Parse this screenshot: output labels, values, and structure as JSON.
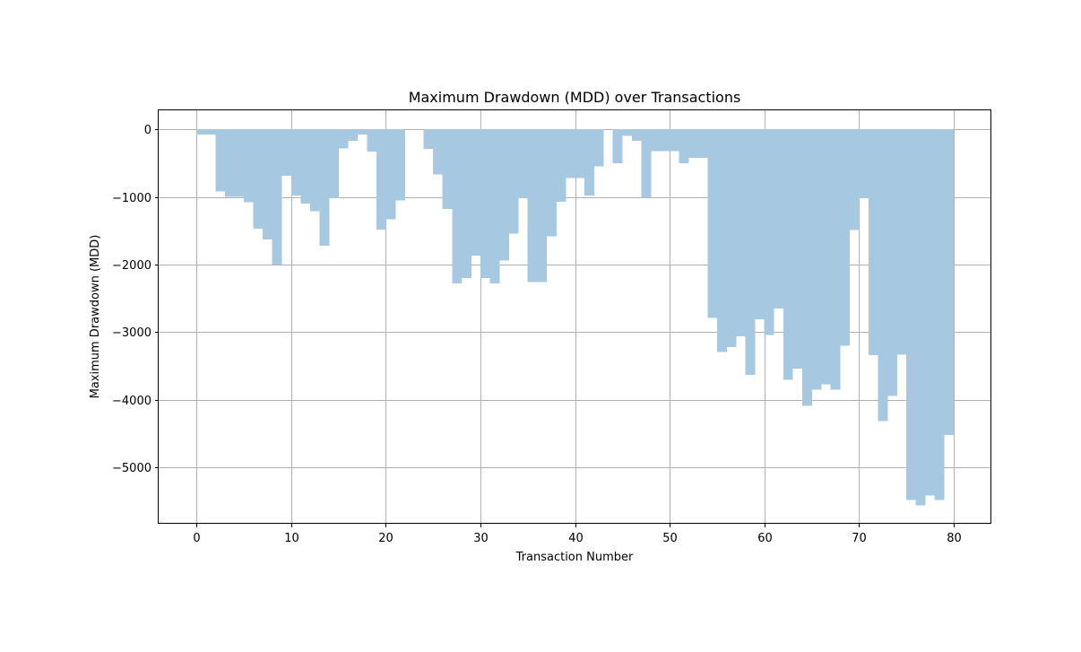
{
  "chart_data": {
    "type": "area",
    "title": "Maximum Drawdown (MDD) over Transactions",
    "xlabel": "Transaction Number",
    "ylabel": "Maximum Drawdown (MDD)",
    "xlim": [
      -4,
      84
    ],
    "ylim": [
      -5830,
      280
    ],
    "xticks": [
      0,
      10,
      20,
      30,
      40,
      50,
      60,
      70,
      80
    ],
    "yticks": [
      0,
      -1000,
      -2000,
      -3000,
      -4000,
      -5000
    ],
    "grid": true,
    "step": "post",
    "fill_color": "#a6c8e0",
    "x": [
      0,
      1,
      2,
      3,
      4,
      5,
      6,
      7,
      8,
      9,
      10,
      11,
      12,
      13,
      14,
      15,
      16,
      17,
      18,
      19,
      20,
      21,
      22,
      23,
      24,
      25,
      26,
      27,
      28,
      29,
      30,
      31,
      32,
      33,
      34,
      35,
      36,
      37,
      38,
      39,
      40,
      41,
      42,
      43,
      44,
      45,
      46,
      47,
      48,
      49,
      50,
      51,
      52,
      53,
      54,
      55,
      56,
      57,
      58,
      59,
      60,
      61,
      62,
      63,
      64,
      65,
      66,
      67,
      68,
      69,
      70,
      71,
      72,
      73,
      74,
      75,
      76,
      77,
      78,
      79,
      80
    ],
    "values": [
      -80,
      -80,
      -920,
      -1000,
      -1000,
      -1080,
      -1470,
      -1630,
      -2000,
      -690,
      -980,
      -1100,
      -1210,
      -1720,
      -1020,
      -280,
      -170,
      -80,
      -330,
      -1480,
      -1330,
      -1050,
      0,
      0,
      -290,
      -670,
      -1180,
      -2280,
      -2200,
      -1870,
      -2200,
      -2280,
      -1940,
      -1540,
      -1020,
      -2260,
      -2260,
      -1580,
      -1070,
      -720,
      -720,
      -980,
      -550,
      0,
      -500,
      -100,
      -170,
      -1010,
      -320,
      -320,
      -320,
      -500,
      -420,
      -420,
      -2790,
      -3290,
      -3220,
      -3060,
      -3630,
      -2810,
      -3040,
      -2650,
      -3700,
      -3540,
      -4090,
      -3850,
      -3770,
      -3850,
      -3200,
      -1490,
      -1020,
      -3340,
      -4310,
      -3940,
      -3330,
      -5480,
      -5560,
      -5410,
      -5480,
      -4520,
      0
    ]
  }
}
